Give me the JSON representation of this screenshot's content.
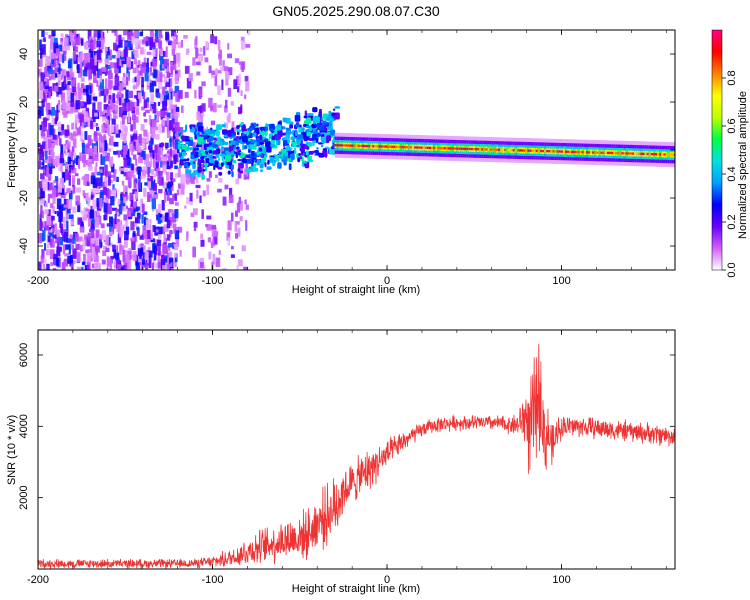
{
  "title": "GN05.2025.290.08.07.C30",
  "colors": {
    "snr_line": "#ee3333",
    "frame": "#000000",
    "cloud_light": "#d9c8f5",
    "cloud_mid": "#8a44f0",
    "cloud_dark": "#4b00d8"
  },
  "chart_data": [
    {
      "type": "heatmap",
      "name": "spectrogram",
      "xlabel": "Height of straight line (km)",
      "ylabel": "Frequency (Hz)",
      "xlim": [
        -200,
        165
      ],
      "ylim": [
        -50,
        50
      ],
      "xticks": [
        -200,
        -100,
        0,
        100
      ],
      "xtick_labels": [
        "-200",
        "-100",
        "0",
        "100"
      ],
      "yticks": [
        -40,
        -20,
        0,
        20,
        40
      ],
      "ytick_labels": [
        "-40",
        "-20",
        "0",
        "20",
        "40"
      ],
      "grid": false,
      "colorbar": {
        "label": "Normalized spectral amplitude",
        "range": [
          0,
          1
        ],
        "ticks": [
          0.0,
          0.2,
          0.4,
          0.6,
          0.8
        ],
        "tick_labels": [
          "0.0",
          "0.2",
          "0.4",
          "0.6",
          "0.8"
        ],
        "stops": [
          "#ffffff",
          "#d060ff",
          "#6a00ff",
          "#0000ff",
          "#00a0ff",
          "#00e0e0",
          "#00ff40",
          "#c0ff00",
          "#ffff00",
          "#ff8000",
          "#ff0000",
          "#ff0080"
        ]
      },
      "regions": [
        {
          "name": "diffuse-noise",
          "x_range": [
            -200,
            -120
          ],
          "f_range": [
            -50,
            50
          ],
          "amplitude": 0.12
        },
        {
          "name": "noise-fringe",
          "x_range": [
            -120,
            -80
          ],
          "f_range": [
            -50,
            50
          ],
          "amplitude": 0.04
        },
        {
          "name": "emerging-signal",
          "x_range": [
            -120,
            -30
          ],
          "f_center_start": 0,
          "f_center_end": 8,
          "bandwidth_hz": 12,
          "amplitude": 0.3
        },
        {
          "name": "carrier-line",
          "x_range": [
            -30,
            165
          ],
          "f_center_start": 2,
          "f_center_end": -2,
          "bandwidth_hz": 4,
          "amplitude": 0.9
        }
      ]
    },
    {
      "type": "line",
      "name": "snr",
      "xlabel": "Height of straight line (km)",
      "ylabel": "SNR (10 * v/v)",
      "xlim": [
        -200,
        165
      ],
      "ylim": [
        0,
        6700
      ],
      "xticks": [
        -200,
        -100,
        0,
        100
      ],
      "xtick_labels": [
        "-200",
        "-100",
        "0",
        "100"
      ],
      "yticks": [
        2000,
        4000,
        6000
      ],
      "ytick_labels": [
        "2000",
        "4000",
        "6000"
      ],
      "grid": false,
      "series": [
        {
          "name": "SNR",
          "x": [
            -200,
            -180,
            -160,
            -140,
            -120,
            -110,
            -100,
            -90,
            -80,
            -70,
            -60,
            -50,
            -45,
            -40,
            -35,
            -30,
            -28,
            -25,
            -20,
            -15,
            -10,
            -5,
            0,
            5,
            10,
            15,
            20,
            25,
            30,
            40,
            50,
            60,
            70,
            75,
            78,
            80,
            82,
            85,
            88,
            90,
            92,
            95,
            98,
            100,
            110,
            120,
            130,
            140,
            150,
            160,
            165
          ],
          "values": [
            150,
            150,
            150,
            150,
            150,
            160,
            200,
            300,
            500,
            650,
            800,
            900,
            1000,
            1300,
            1500,
            1700,
            2000,
            2200,
            2400,
            2600,
            2800,
            3000,
            3200,
            3400,
            3600,
            3750,
            3900,
            4000,
            4050,
            4100,
            4100,
            4100,
            4050,
            4050,
            4200,
            4300,
            3700,
            4600,
            5000,
            3600,
            3800,
            3400,
            3900,
            4000,
            4000,
            3950,
            3900,
            3850,
            3800,
            3750,
            3700
          ],
          "noise_amplitude": [
            150,
            150,
            150,
            150,
            150,
            150,
            200,
            300,
            500,
            600,
            700,
            800,
            800,
            900,
            1000,
            1000,
            1500,
            700,
            700,
            700,
            700,
            600,
            500,
            400,
            350,
            300,
            250,
            250,
            250,
            250,
            250,
            250,
            300,
            400,
            800,
            1200,
            1800,
            1800,
            1800,
            1500,
            1000,
            700,
            500,
            400,
            350,
            350,
            350,
            350,
            350,
            350,
            350
          ]
        }
      ]
    }
  ]
}
